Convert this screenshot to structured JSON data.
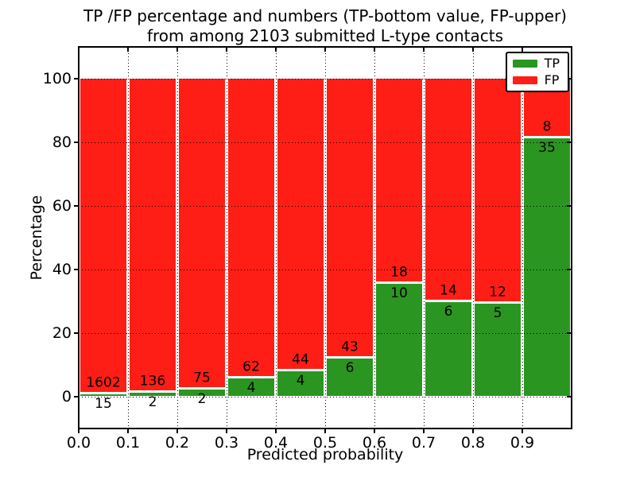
{
  "title": {
    "line1": "TP /FP percentage and numbers (TP-bottom value, FP-upper)",
    "line2": "from among 2103 submitted L-type contacts"
  },
  "chart_data": {
    "type": "bar",
    "subtype": "stacked-percentage",
    "title": "TP /FP percentage and numbers (TP-bottom value, FP-upper)\nfrom among 2103 submitted L-type contacts",
    "xlabel": "Predicted probability",
    "ylabel": "Percentage",
    "bins": {
      "start": 0.0,
      "end": 1.0,
      "width": 0.1
    },
    "xticks": [
      "0.0",
      "0.1",
      "0.2",
      "0.3",
      "0.4",
      "0.5",
      "0.6",
      "0.7",
      "0.8",
      "0.9"
    ],
    "yticks": [
      0,
      20,
      40,
      60,
      80,
      100
    ],
    "xlim": [
      0,
      1
    ],
    "ylim": [
      -10,
      110
    ],
    "grid": {
      "style": "dotted",
      "color": "#000000"
    },
    "bar_label_rule": "FP count shown above TP/FP boundary, TP count shown below boundary",
    "legend": {
      "position": "upper-right",
      "entries": [
        "TP",
        "FP"
      ]
    },
    "series": [
      {
        "name": "TP",
        "color": "#2a9621",
        "counts": [
          15,
          2,
          2,
          4,
          4,
          6,
          10,
          6,
          5,
          35
        ],
        "percent": [
          0.93,
          1.45,
          2.6,
          6.06,
          8.33,
          12.24,
          35.71,
          30.0,
          29.41,
          81.4
        ]
      },
      {
        "name": "FP",
        "color": "#ff1e15",
        "counts": [
          1602,
          136,
          75,
          62,
          44,
          43,
          18,
          14,
          12,
          8
        ],
        "percent": [
          99.07,
          98.55,
          97.4,
          93.94,
          91.67,
          87.76,
          64.29,
          70.0,
          70.59,
          18.6
        ]
      }
    ]
  }
}
